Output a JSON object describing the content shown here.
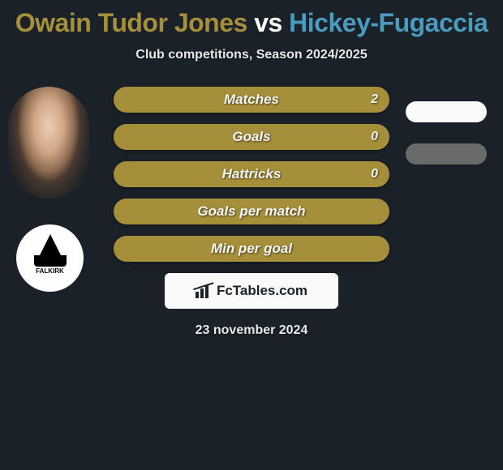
{
  "title_parts": {
    "player1": "Owain Tudor Jones",
    "vs": " vs ",
    "player2": "Hickey-Fugaccia"
  },
  "title_colors": {
    "player1": "#a68f3a",
    "vs": "#ffffff",
    "player2": "#4a9bbd"
  },
  "subtitle": "Club competitions, Season 2024/2025",
  "club_badge_text": "FALKIRK",
  "stats": [
    {
      "label": "Matches",
      "value": "2",
      "show_value": true,
      "bg": "#a68f3a"
    },
    {
      "label": "Goals",
      "value": "0",
      "show_value": true,
      "bg": "#a68f3a"
    },
    {
      "label": "Hattricks",
      "value": "0",
      "show_value": true,
      "bg": "#a68f3a"
    },
    {
      "label": "Goals per match",
      "value": "",
      "show_value": false,
      "bg": "#a68f3a"
    },
    {
      "label": "Min per goal",
      "value": "",
      "show_value": false,
      "bg": "#a68f3a"
    }
  ],
  "chips": [
    {
      "bg": "#fafafa"
    },
    {
      "bg": "#6a6a6a"
    }
  ],
  "logo_text": "FcTables.com",
  "date": "23 november 2024",
  "colors": {
    "page_bg": "#1a2128",
    "logo_box_bg": "#fafafa",
    "text_light": "#e8e8e8"
  }
}
